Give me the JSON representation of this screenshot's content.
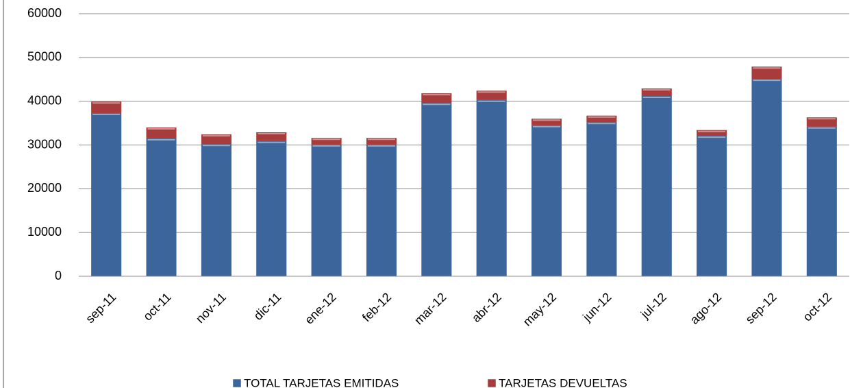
{
  "chart_data": {
    "type": "stacked_bar",
    "categories": [
      "sep-11",
      "oct-11",
      "nov-11",
      "dic-11",
      "ene-12",
      "feb-12",
      "mar-12",
      "abr-12",
      "may-12",
      "jun-12",
      "jul-12",
      "ago-12",
      "sep-12",
      "oct-12"
    ],
    "series": [
      {
        "name": "TOTAL TARJETAS EMITIDAS",
        "color": "#3b659b",
        "values": [
          37300,
          31500,
          30200,
          30900,
          30100,
          30100,
          39600,
          40300,
          34500,
          35200,
          41200,
          32100,
          45100,
          34200
        ]
      },
      {
        "name": "TARJETAS DEVUELTAS",
        "color": "#a83b3b",
        "values": [
          2600,
          2500,
          2200,
          2000,
          1500,
          1500,
          2200,
          2100,
          1500,
          1500,
          1700,
          1300,
          2800,
          2100
        ]
      }
    ],
    "ylim": [
      0,
      60000
    ],
    "yticks": [
      0,
      10000,
      20000,
      30000,
      40000,
      50000,
      60000
    ],
    "grid": true,
    "legend": "bottom"
  }
}
